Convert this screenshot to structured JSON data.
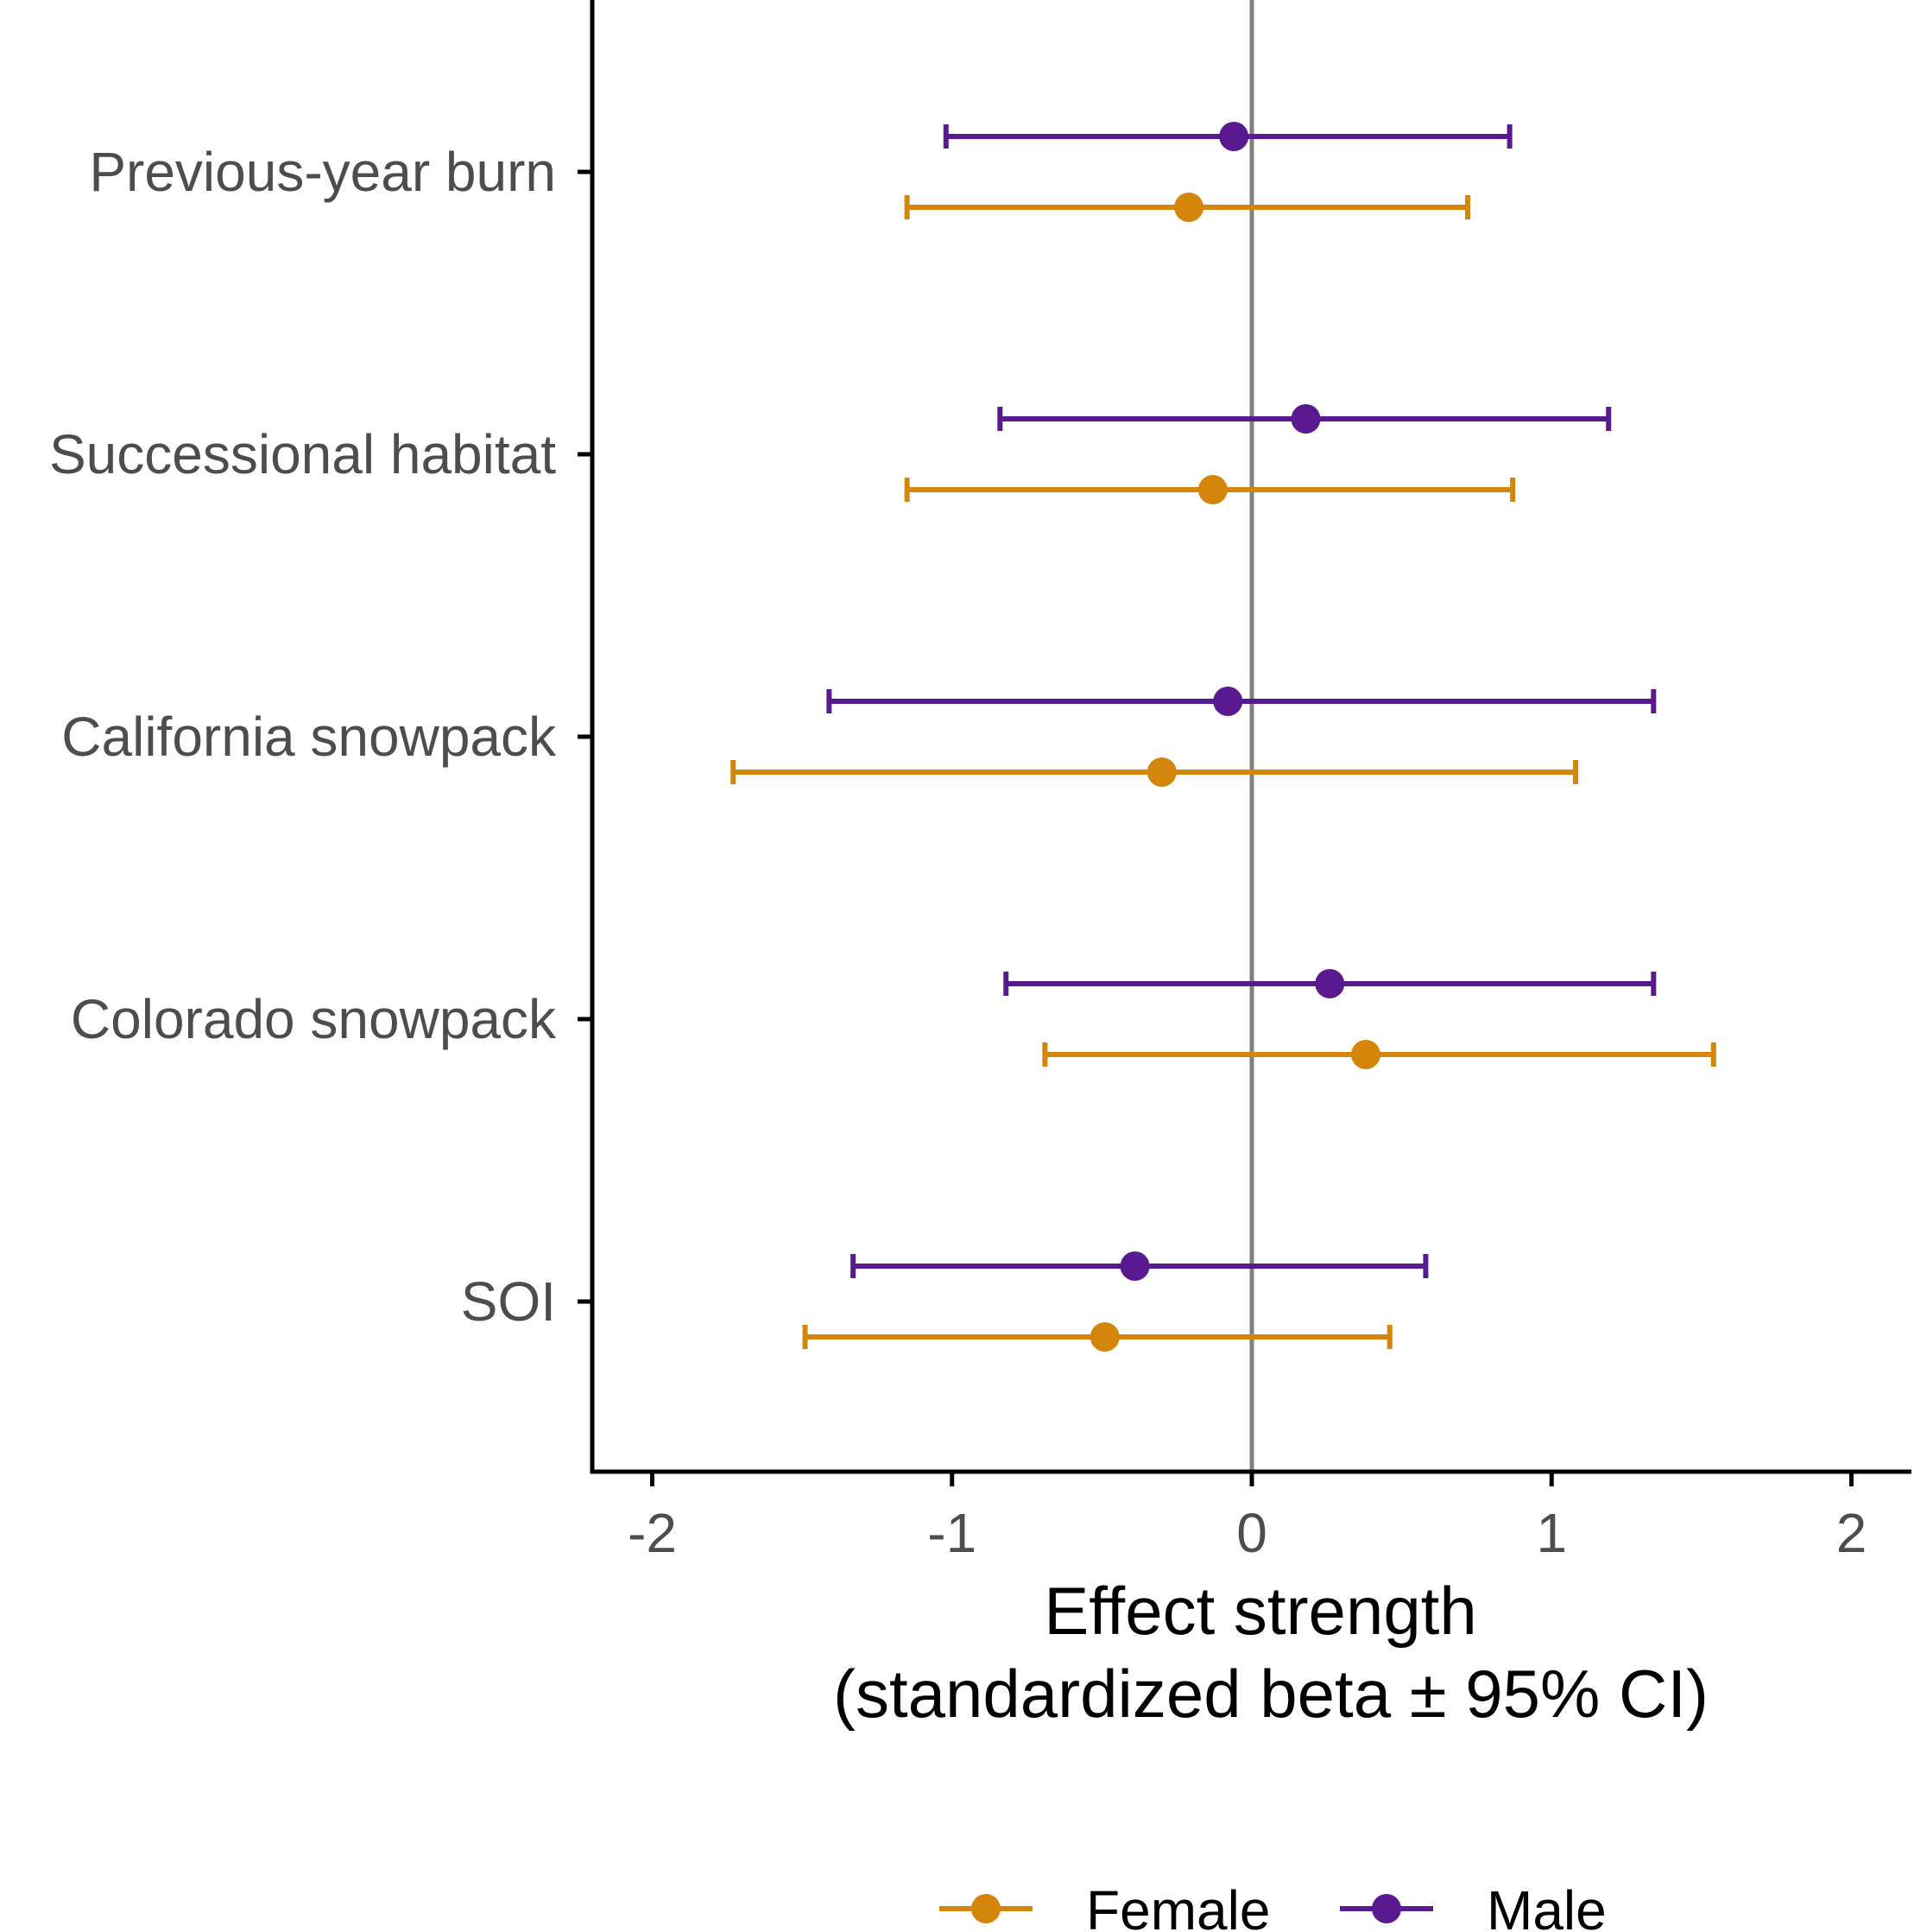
{
  "chart_data": {
    "type": "forest",
    "categories": [
      "Previous-year burn",
      "Successional habitat",
      "California snowpack",
      "Colorado snowpack",
      "SOI"
    ],
    "series": [
      {
        "name": "Male",
        "color": "#5a1a8f",
        "estimates": [
          -0.06,
          0.18,
          -0.08,
          0.26,
          -0.39
        ],
        "ci_low": [
          -1.02,
          -0.84,
          -1.41,
          -0.82,
          -1.33
        ],
        "ci_high": [
          0.86,
          1.19,
          1.34,
          1.34,
          0.58
        ]
      },
      {
        "name": "Female",
        "color": "#d4860b",
        "estimates": [
          -0.21,
          -0.13,
          -0.3,
          0.38,
          -0.49
        ],
        "ci_low": [
          -1.15,
          -1.15,
          -1.73,
          -0.69,
          -1.49
        ],
        "ci_high": [
          0.72,
          0.87,
          1.08,
          1.54,
          0.46
        ]
      }
    ],
    "xlim": [
      -2.2,
      2.2
    ],
    "xticks": [
      "-2",
      "-1",
      "0",
      "1",
      "2"
    ],
    "reference_line": 0,
    "xlabel_line1": "Effect strength",
    "xlabel_line2": "(standardized beta ± 95% CI)",
    "ylabel": "",
    "legend_position": "bottom",
    "legend_order": [
      "Female",
      "Male"
    ],
    "reference_line_color": "#808080",
    "axis_color": "#000000"
  }
}
